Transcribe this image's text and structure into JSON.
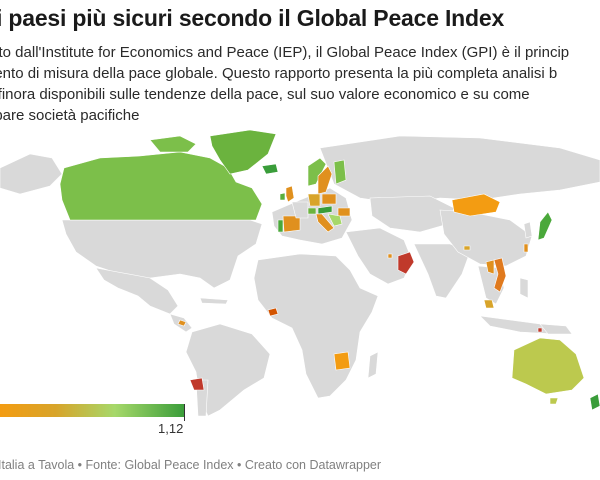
{
  "header": {
    "title": "i paesi più sicuri secondo il Global Peace Index",
    "description_lines": [
      "otto dall'Institute for Economics and Peace (IEP), il Global Peace Index (GPI) è il princip",
      "uento di misura della pace globale. Questo rapporto presenta la più completa analisi b",
      "ti finora disponibili sulle tendenze della pace, sul suo valore economico e su come",
      "upare società pacifiche"
    ]
  },
  "legend": {
    "max_label": "1,12",
    "colors": [
      "#f39c12",
      "#a6d86a",
      "#3a9d3a"
    ]
  },
  "footer": {
    "credit": "Italia a Tavola • Fonte: Global Peace Index • Creato con Datawrapper"
  },
  "map": {
    "base_color": "#d9d9d9",
    "highlighted_countries": [
      {
        "name": "Canada",
        "color": "#7cbf4a"
      },
      {
        "name": "Greenland",
        "color": "#6bb33e"
      },
      {
        "name": "Iceland",
        "color": "#3a9d3a"
      },
      {
        "name": "Ireland",
        "color": "#5aaf3c"
      },
      {
        "name": "United Kingdom",
        "color": "#e0901e"
      },
      {
        "name": "Portugal",
        "color": "#4aa83a"
      },
      {
        "name": "Spain",
        "color": "#e0901e"
      },
      {
        "name": "Norway",
        "color": "#7cbf4a"
      },
      {
        "name": "Sweden",
        "color": "#e0901e"
      },
      {
        "name": "Finland",
        "color": "#7cbf4a"
      },
      {
        "name": "Germany",
        "color": "#d8a42a"
      },
      {
        "name": "Poland",
        "color": "#e0901e"
      },
      {
        "name": "Austria",
        "color": "#3a9d3a"
      },
      {
        "name": "Switzerland",
        "color": "#6bb33e"
      },
      {
        "name": "Italy",
        "color": "#e0901e"
      },
      {
        "name": "Romania",
        "color": "#e0901e"
      },
      {
        "name": "Mongolia",
        "color": "#f39c12"
      },
      {
        "name": "Japan",
        "color": "#4aa83a"
      },
      {
        "name": "Taiwan",
        "color": "#e0901e"
      },
      {
        "name": "Vietnam",
        "color": "#e07a1e"
      },
      {
        "name": "Laos",
        "color": "#e0901e"
      },
      {
        "name": "Malaysia",
        "color": "#d8a42a"
      },
      {
        "name": "Oman",
        "color": "#c0392b"
      },
      {
        "name": "Qatar",
        "color": "#e0901e"
      },
      {
        "name": "Bhutan",
        "color": "#d8a42a"
      },
      {
        "name": "Costa Rica",
        "color": "#e0901e"
      },
      {
        "name": "Sierra Leone",
        "color": "#d35400"
      },
      {
        "name": "Botswana",
        "color": "#f39c12"
      },
      {
        "name": "Uruguay",
        "color": "#c0392b"
      },
      {
        "name": "Australia",
        "color": "#bcc94e"
      },
      {
        "name": "New Zealand",
        "color": "#3a9d3a"
      },
      {
        "name": "Singapore",
        "color": "#c0392b"
      }
    ]
  }
}
